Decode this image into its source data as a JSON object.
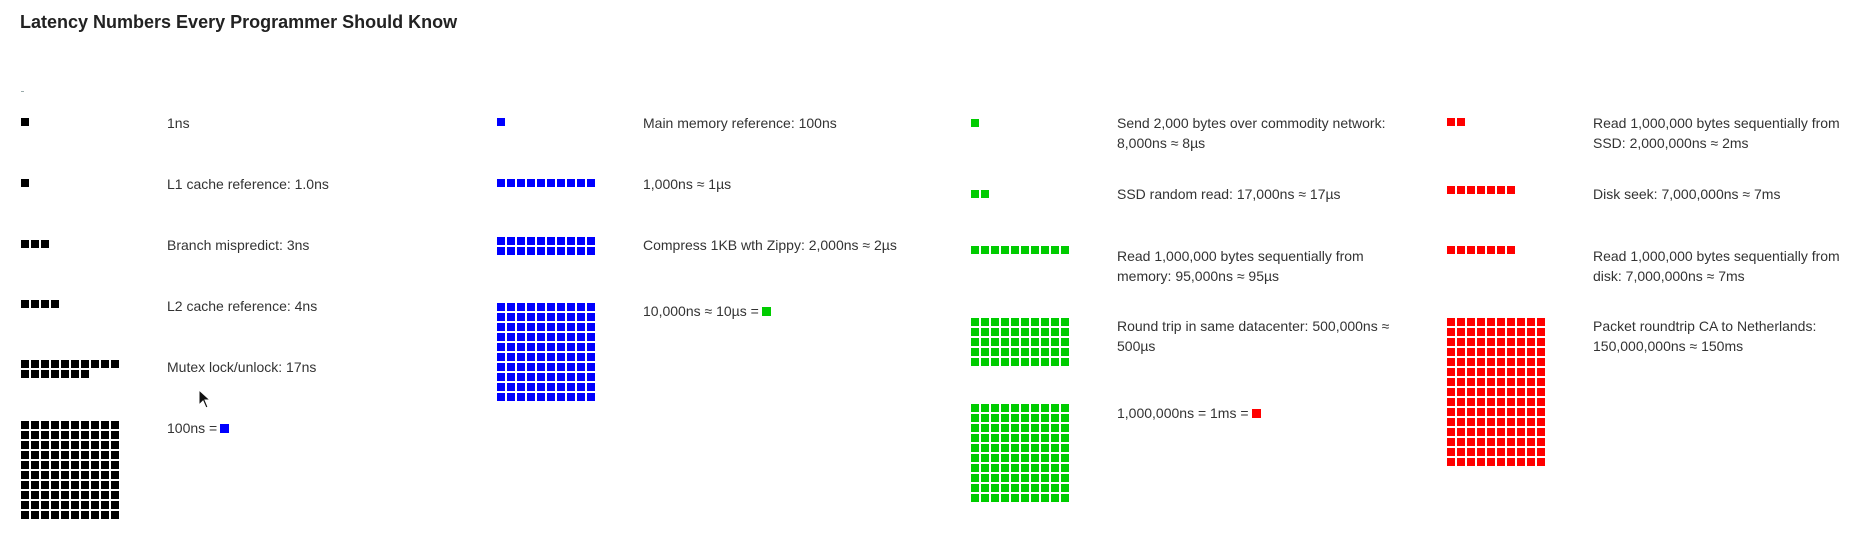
{
  "title": "Latency Numbers Every Programmer Should Know",
  "colors": {
    "ns": "#000000",
    "hundred_ns": "#0000ff",
    "ten_us": "#00cc00",
    "one_ms": "#ff0000",
    "text": "#333333"
  },
  "items": [
    {
      "id": "one-ns",
      "label": "1ns",
      "squares": 1,
      "color_key": "ns"
    },
    {
      "id": "l1-cache",
      "label": "L1 cache reference: 1.0ns",
      "squares": 1,
      "color_key": "ns"
    },
    {
      "id": "branch-mispredict",
      "label": "Branch mispredict: 3ns",
      "squares": 3,
      "color_key": "ns"
    },
    {
      "id": "l2-cache",
      "label": "L2 cache reference: 4ns",
      "squares": 4,
      "color_key": "ns"
    },
    {
      "id": "mutex",
      "label": "Mutex lock/unlock: 17ns",
      "squares": 17,
      "color_key": "ns"
    },
    {
      "id": "hundred-ns",
      "label": "100ns =",
      "squares": 100,
      "color_key": "ns",
      "equals_color_key": "hundred_ns"
    },
    {
      "id": "main-memory",
      "label": "Main memory reference: 100ns",
      "squares": 1,
      "color_key": "hundred_ns"
    },
    {
      "id": "one-us",
      "label": "1,000ns ≈ 1µs",
      "squares": 10,
      "color_key": "hundred_ns"
    },
    {
      "id": "zippy",
      "label": "Compress 1KB wth Zippy: 2,000ns ≈ 2µs",
      "squares": 20,
      "color_key": "hundred_ns"
    },
    {
      "id": "ten-us",
      "label": "10,000ns ≈ 10µs =",
      "squares": 100,
      "color_key": "hundred_ns",
      "equals_color_key": "ten_us"
    },
    {
      "id": "send-network",
      "label": "Send 2,000 bytes over commodity network: 8,000ns ≈ 8µs",
      "squares": 1,
      "color_key": "ten_us"
    },
    {
      "id": "ssd-random",
      "label": "SSD random read: 17,000ns ≈ 17µs",
      "squares": 2,
      "color_key": "ten_us"
    },
    {
      "id": "read-memory",
      "label": "Read 1,000,000 bytes sequentially from memory: 95,000ns ≈ 95µs",
      "squares": 10,
      "color_key": "ten_us"
    },
    {
      "id": "round-trip",
      "label": "Round trip in same datacenter: 500,000ns ≈ 500µs",
      "squares": 50,
      "color_key": "ten_us"
    },
    {
      "id": "one-ms",
      "label": "1,000,000ns = 1ms =",
      "squares": 100,
      "color_key": "ten_us",
      "equals_color_key": "one_ms"
    },
    {
      "id": "read-ssd",
      "label": "Read 1,000,000 bytes sequentially from SSD: 2,000,000ns ≈ 2ms",
      "squares": 2,
      "color_key": "one_ms"
    },
    {
      "id": "disk-seek",
      "label": "Disk seek: 7,000,000ns ≈ 7ms",
      "squares": 7,
      "color_key": "one_ms"
    },
    {
      "id": "read-disk",
      "label": "Read 1,000,000 bytes sequentially from disk: 7,000,000ns ≈ 7ms",
      "squares": 7,
      "color_key": "one_ms"
    },
    {
      "id": "packet-roundtrip",
      "label": "Packet roundtrip CA to Netherlands: 150,000,000ns ≈ 150ms",
      "squares": 150,
      "color_key": "one_ms"
    }
  ]
}
